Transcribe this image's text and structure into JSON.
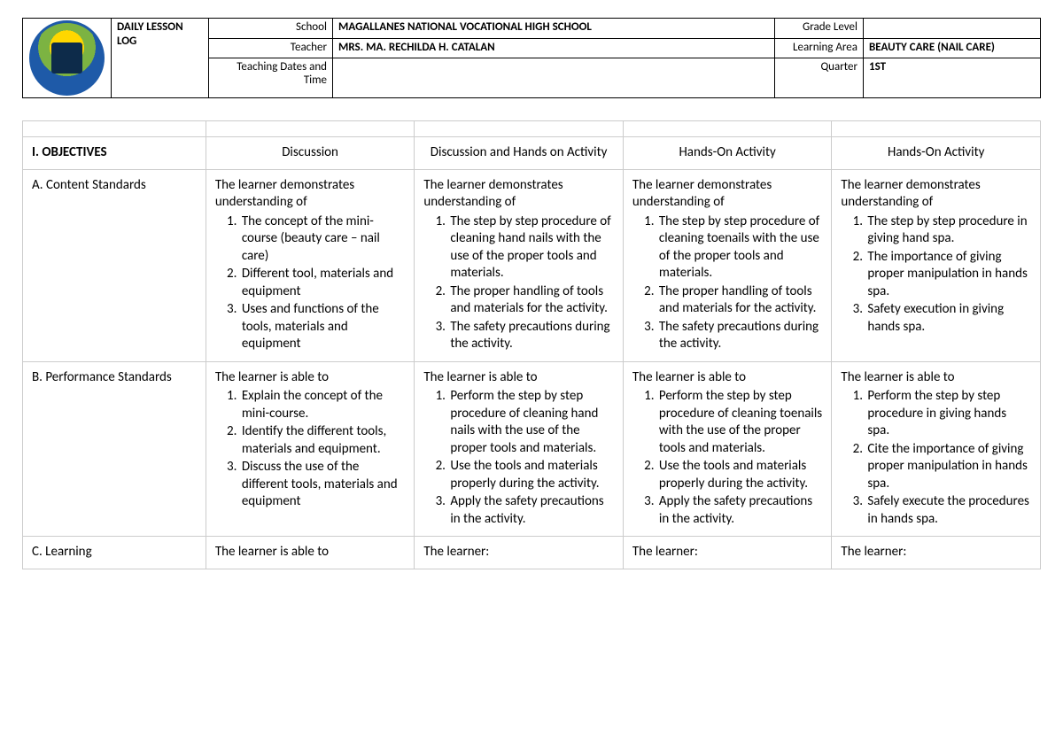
{
  "header": {
    "title": "DAILY LESSON LOG",
    "labels": {
      "school": "School",
      "teacher": "Teacher",
      "dates": "Teaching Dates and Time",
      "grade": "Grade Level",
      "area": "Learning Area",
      "quarter": "Quarter"
    },
    "values": {
      "school": "MAGALLANES NATIONAL VOCATIONAL HIGH SCHOOL",
      "teacher": "MRS. MA. RECHILDA H. CATALAN",
      "dates": "",
      "grade": "",
      "area": "BEAUTY CARE (NAIL CARE)",
      "quarter": "1ST"
    }
  },
  "objectives": {
    "section_title": "I. OBJECTIVES",
    "days": [
      "Discussion",
      "Discussion and Hands on Activity",
      "Hands-On Activity",
      "Hands-On Activity"
    ],
    "rows": {
      "content_standards": {
        "label": "A. Content Standards",
        "intro": "The learner demonstrates understanding of",
        "col1": [
          "The concept of the mini-course (beauty care – nail care)",
          "Different tool, materials and equipment",
          "Uses and functions of the tools, materials and equipment"
        ],
        "col2": [
          "The step by step procedure of cleaning hand nails with the use of the proper tools and materials.",
          "The proper handling of tools and materials for the activity.",
          "The safety precautions during the activity."
        ],
        "col3": [
          "The step by step procedure of cleaning toenails with the use of the proper tools and materials.",
          "The proper handling of tools and materials for the activity.",
          "The safety precautions during the activity."
        ],
        "col4": [
          "The step by step procedure in giving hand spa.",
          "The importance of giving proper manipulation in hands spa.",
          "Safety execution in giving hands spa."
        ]
      },
      "performance_standards": {
        "label": "B. Performance Standards",
        "intro": "The learner is able to",
        "col1": [
          "Explain the concept of the mini-course.",
          "Identify the different tools, materials and equipment.",
          "Discuss the use of the different tools, materials and equipment"
        ],
        "col2": [
          "Perform the step by step procedure of cleaning hand nails with the use of the proper tools and materials.",
          "Use the tools and materials properly during the activity.",
          "Apply the safety precautions in the activity."
        ],
        "col3": [
          "Perform the step by step procedure of cleaning toenails with the use of the proper tools and materials.",
          "Use the tools and materials properly during the activity.",
          "Apply the safety precautions in the activity."
        ],
        "col4": [
          "Perform the step by step procedure in giving hands spa.",
          "Cite the importance of giving proper manipulation in hands spa.",
          "Safely execute the procedures in hands spa."
        ]
      },
      "learning": {
        "label": "C. Learning",
        "col1_intro": "The learner is able to",
        "other_intro": "The learner:"
      }
    }
  }
}
